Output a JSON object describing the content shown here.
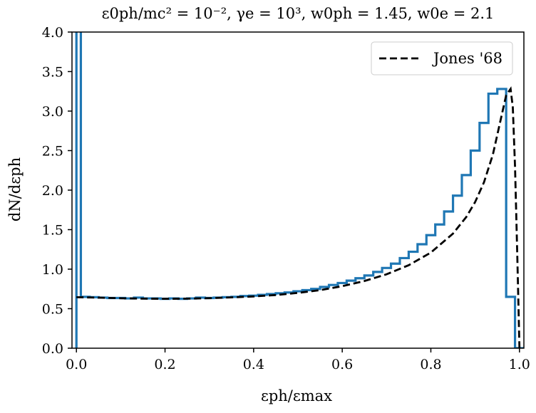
{
  "chart_data": {
    "type": "line",
    "title": "ε0ph/mc² = 10⁻², γe = 10³, w0ph = 1.45, w0e = 2.1",
    "xlabel": "εph/εmax",
    "ylabel": "dN/dεph",
    "xlim": [
      -0.01,
      1.01
    ],
    "ylim": [
      0.0,
      4.0
    ],
    "x_ticks": [
      0.0,
      0.2,
      0.4,
      0.6,
      0.8,
      1.0
    ],
    "x_tick_labels": [
      "0.0",
      "0.2",
      "0.4",
      "0.6",
      "0.8",
      "1.0"
    ],
    "y_ticks": [
      0.0,
      0.5,
      1.0,
      1.5,
      2.0,
      2.5,
      3.0,
      3.5,
      4.0
    ],
    "y_tick_labels": [
      "0.0",
      "0.5",
      "1.0",
      "1.5",
      "2.0",
      "2.5",
      "3.0",
      "3.5",
      "4.0"
    ],
    "grid": false,
    "legend": {
      "location": "top-right",
      "entries": [
        "Jones '68"
      ]
    },
    "series": [
      {
        "style": "step",
        "color": "#1f77b4",
        "x": [
          0.0,
          0.01,
          0.03,
          0.05,
          0.07,
          0.09,
          0.11,
          0.13,
          0.15,
          0.17,
          0.19,
          0.21,
          0.23,
          0.25,
          0.27,
          0.29,
          0.31,
          0.33,
          0.35,
          0.37,
          0.39,
          0.41,
          0.43,
          0.45,
          0.47,
          0.49,
          0.51,
          0.53,
          0.55,
          0.57,
          0.59,
          0.61,
          0.63,
          0.65,
          0.67,
          0.69,
          0.71,
          0.73,
          0.75,
          0.77,
          0.79,
          0.81,
          0.83,
          0.85,
          0.87,
          0.89,
          0.91,
          0.93,
          0.95,
          0.97,
          0.99,
          1.01
        ],
        "y": [
          5.0,
          0.65,
          0.645,
          0.64,
          0.635,
          0.635,
          0.63,
          0.64,
          0.63,
          0.63,
          0.625,
          0.63,
          0.625,
          0.63,
          0.64,
          0.635,
          0.64,
          0.645,
          0.65,
          0.66,
          0.665,
          0.675,
          0.685,
          0.695,
          0.705,
          0.72,
          0.735,
          0.75,
          0.775,
          0.8,
          0.825,
          0.855,
          0.885,
          0.92,
          0.965,
          1.015,
          1.07,
          1.14,
          1.22,
          1.315,
          1.43,
          1.565,
          1.73,
          1.93,
          2.19,
          2.5,
          2.85,
          3.22,
          3.28,
          0.65,
          0.0,
          0.0
        ]
      },
      {
        "name": "Jones '68",
        "style": "dashed",
        "color": "#000000",
        "x": [
          0.0,
          0.02,
          0.05,
          0.1,
          0.15,
          0.2,
          0.25,
          0.3,
          0.35,
          0.4,
          0.45,
          0.5,
          0.55,
          0.6,
          0.65,
          0.7,
          0.75,
          0.8,
          0.85,
          0.88,
          0.9,
          0.92,
          0.94,
          0.96,
          0.97,
          0.98,
          0.985,
          0.99,
          0.995,
          1.0
        ],
        "y": [
          0.645,
          0.643,
          0.64,
          0.632,
          0.627,
          0.625,
          0.627,
          0.633,
          0.643,
          0.655,
          0.673,
          0.7,
          0.735,
          0.785,
          0.85,
          0.935,
          1.05,
          1.21,
          1.45,
          1.66,
          1.85,
          2.1,
          2.45,
          2.95,
          3.2,
          3.28,
          3.05,
          2.3,
          1.2,
          0.0
        ]
      }
    ]
  }
}
